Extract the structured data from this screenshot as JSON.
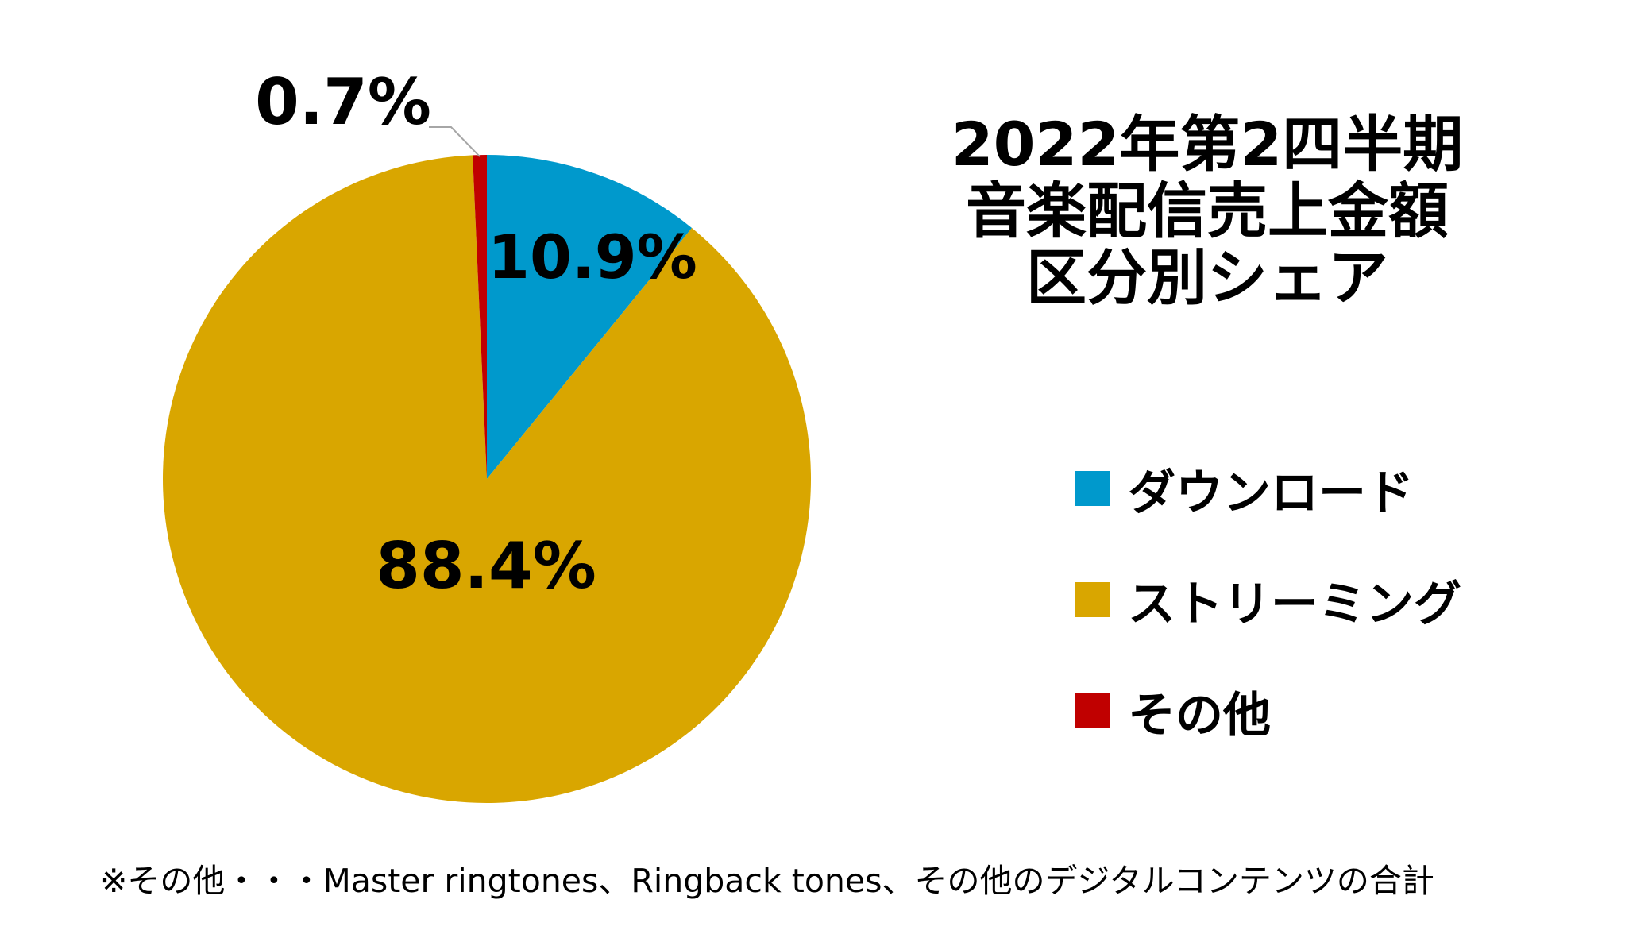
{
  "chart_data": {
    "type": "pie",
    "title_lines": [
      "2022年第2四半期",
      "音楽配信売上金額",
      "区分別シェア"
    ],
    "categories": [
      "ダウンロード",
      "ストリーミング",
      "その他"
    ],
    "values": [
      10.9,
      88.4,
      0.7
    ],
    "data_labels": [
      "10.9%",
      "88.4%",
      "0.7%"
    ],
    "colors": [
      "#0099CC",
      "#D9A600",
      "#C00000"
    ],
    "start_angle_deg": 0,
    "direction": "clockwise",
    "legend_position": "right"
  },
  "footnote": "※その他・・・Master ringtones、Ringback tones、その他のデジタルコンテンツの合計"
}
